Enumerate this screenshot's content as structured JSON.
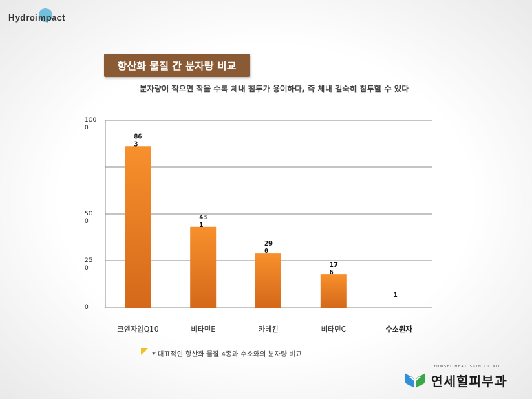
{
  "brand": {
    "logo_text": "Hydroimpact"
  },
  "header": {
    "title": "항산화 물질 간 분자량 비교",
    "subtitle": "분자량이 작으면 작을 수록  체내 침투가 용이하다, 즉 체내 깊숙히 침투할 수 있다"
  },
  "colors": {
    "bar": "#f7902c",
    "bar_dark": "#d4691a",
    "highlight": "#d02020",
    "title_bg": "#8a5a34"
  },
  "chart_data": {
    "type": "bar",
    "categories": [
      "코엔자임Q10",
      "비타민E",
      "카테킨",
      "비타민C",
      "수소원자"
    ],
    "values": [
      863,
      431,
      290,
      176,
      1
    ],
    "data_labels": [
      [
        "86",
        "3"
      ],
      [
        "43",
        "1"
      ],
      [
        "29",
        "0"
      ],
      [
        "17",
        "6"
      ],
      [
        "1"
      ]
    ],
    "highlight_index": 4,
    "ylim": [
      0,
      1000
    ],
    "yticks": [
      {
        "value": 0,
        "label": [
          "0"
        ]
      },
      {
        "value": 250,
        "label": [
          "25",
          "0"
        ]
      },
      {
        "value": 500,
        "label": [
          "50",
          "0"
        ]
      },
      {
        "value": 1000,
        "label": [
          "100",
          "0"
        ]
      }
    ],
    "gridlines": [
      250,
      500,
      750,
      1000
    ],
    "grid": true
  },
  "footnote": "* 대표적인 항산화 물질 4종과 수소와의 분자량 비교",
  "clinic": {
    "name_ko": "연세힐피부과",
    "name_en": "YONSEI HEAL SKIN CLINIC"
  }
}
